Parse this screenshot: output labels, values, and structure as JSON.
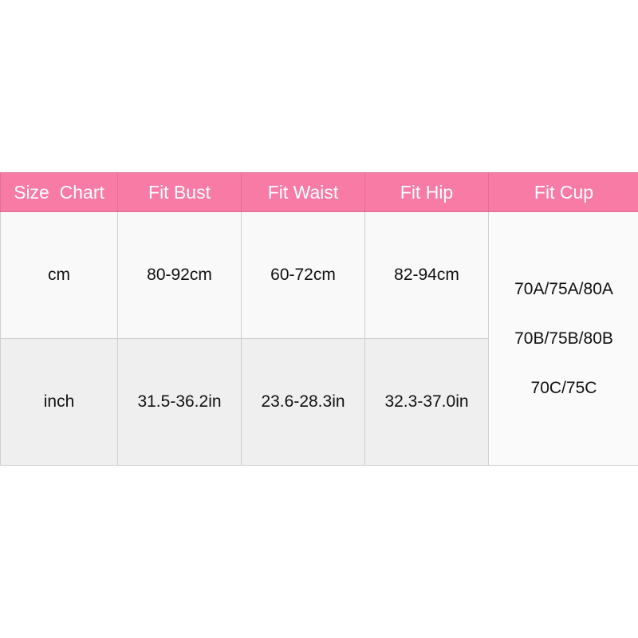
{
  "header": [
    "Size  Chart",
    "Fit Bust",
    "Fit Waist",
    "Fit Hip",
    "Fit Cup"
  ],
  "rows": [
    {
      "unit": "cm",
      "bust": "80-92cm",
      "waist": "60-72cm",
      "hip": "82-94cm"
    },
    {
      "unit": "inch",
      "bust": "31.5-36.2in",
      "waist": "23.6-28.3in",
      "hip": "32.3-37.0in"
    }
  ],
  "cup": [
    "70A/75A/80A",
    "70B/75B/80B",
    "70C/75C"
  ],
  "colors": {
    "header_bg": "#f77ba5",
    "header_text": "#ffffff"
  }
}
